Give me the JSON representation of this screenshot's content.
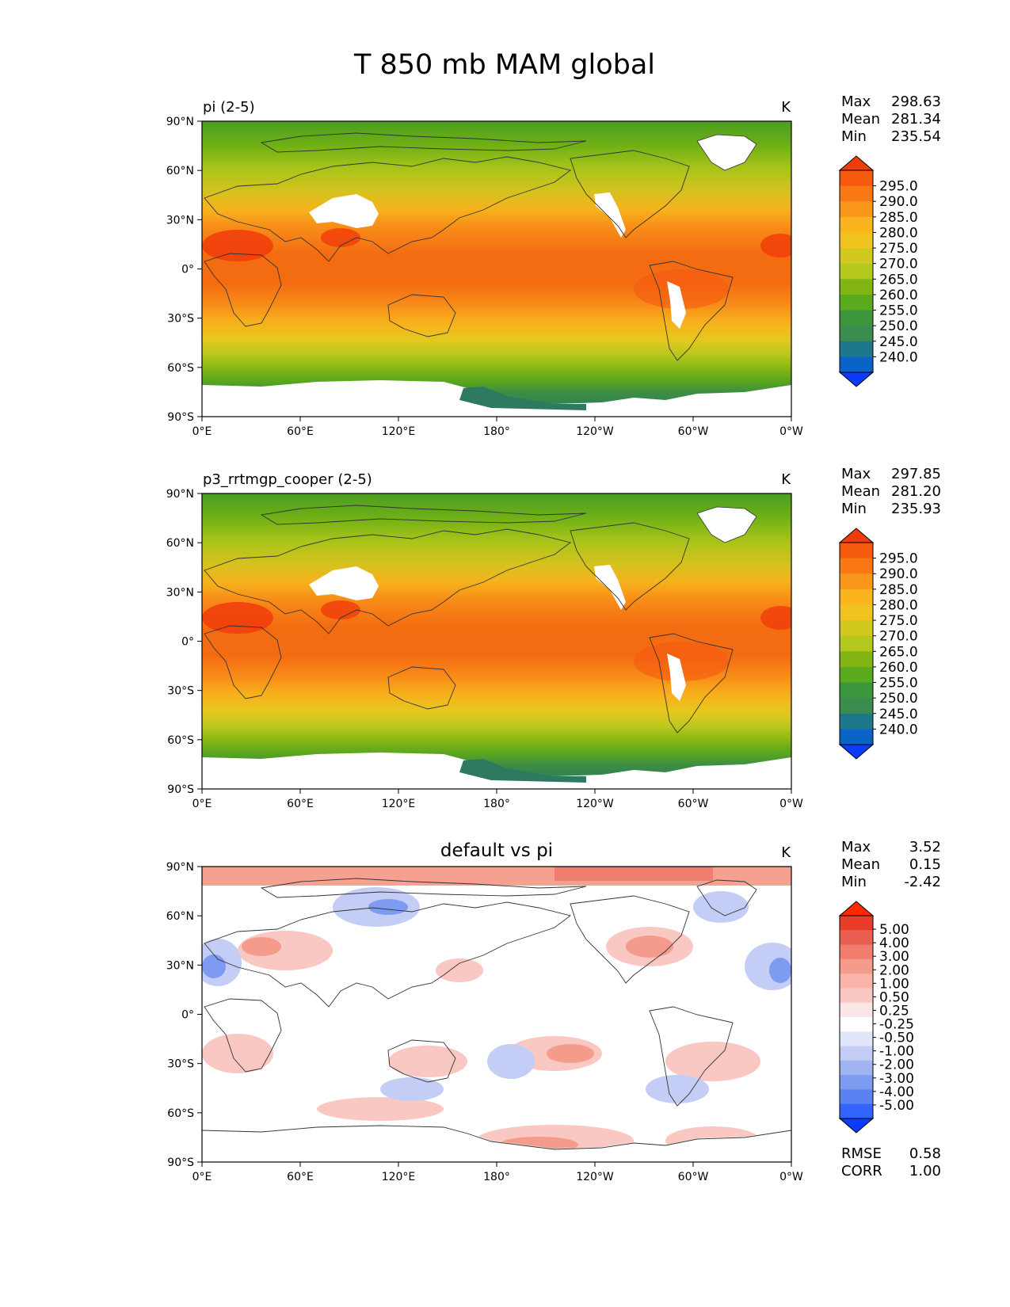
{
  "title": "T 850 mb MAM global",
  "colors": {
    "main_cmap": [
      "#0a3cff",
      "#0a64c8",
      "#1e788c",
      "#3c8c50",
      "#3c963c",
      "#5aaa1e",
      "#82b414",
      "#b4c81e",
      "#d2c81e",
      "#f0c31e",
      "#fab41e",
      "#fa9619",
      "#fa7814",
      "#f55a0f",
      "#f03c0a"
    ],
    "diff_cmap": [
      "#0a3cff",
      "#3264ff",
      "#5a82f0",
      "#7d9bf0",
      "#a0b4f0",
      "#c3cdf5",
      "#e1e6fa",
      "#ffffff",
      "#fae6e6",
      "#fac8c3",
      "#fab4aa",
      "#f59b8c",
      "#f07d6e",
      "#eb5f50",
      "#e63c28",
      "#ff2800"
    ],
    "land_mask": "#ffffff"
  },
  "axis": {
    "lat_ticks": [
      "90°N",
      "60°N",
      "30°N",
      "0°",
      "30°S",
      "60°S",
      "90°S"
    ],
    "lon_ticks": [
      "0°E",
      "60°E",
      "120°E",
      "180°",
      "120°W",
      "60°W",
      "0°W"
    ]
  },
  "panels": [
    {
      "left_title": "pi (2-5)",
      "center_title": "",
      "units": "K",
      "stats": [
        {
          "label": "Max",
          "value": "298.63"
        },
        {
          "label": "Mean",
          "value": "281.34"
        },
        {
          "label": "Min",
          "value": "235.54"
        }
      ],
      "colorbar_labels": [
        "295.0",
        "290.0",
        "285.0",
        "280.0",
        "275.0",
        "270.0",
        "265.0",
        "260.0",
        "255.0",
        "250.0",
        "245.0",
        "240.0"
      ],
      "extra_stats": []
    },
    {
      "left_title": "p3_rrtmgp_cooper (2-5)",
      "center_title": "",
      "units": "K",
      "stats": [
        {
          "label": "Max",
          "value": "297.85"
        },
        {
          "label": "Mean",
          "value": "281.20"
        },
        {
          "label": "Min",
          "value": "235.93"
        }
      ],
      "colorbar_labels": [
        "295.0",
        "290.0",
        "285.0",
        "280.0",
        "275.0",
        "270.0",
        "265.0",
        "260.0",
        "255.0",
        "250.0",
        "245.0",
        "240.0"
      ],
      "extra_stats": []
    },
    {
      "left_title": "",
      "center_title": "default vs pi",
      "units": "K",
      "stats": [
        {
          "label": "Max",
          "value": "3.52"
        },
        {
          "label": "Mean",
          "value": "0.15"
        },
        {
          "label": "Min",
          "value": "-2.42"
        }
      ],
      "colorbar_labels": [
        "5.00",
        "4.00",
        "3.00",
        "2.00",
        "1.00",
        "0.50",
        "0.25",
        "-0.25",
        "-0.50",
        "-1.00",
        "-2.00",
        "-3.00",
        "-4.00",
        "-5.00"
      ],
      "extra_stats": [
        {
          "label": "RMSE",
          "value": "0.58"
        },
        {
          "label": "CORR",
          "value": "1.00"
        }
      ]
    }
  ]
}
